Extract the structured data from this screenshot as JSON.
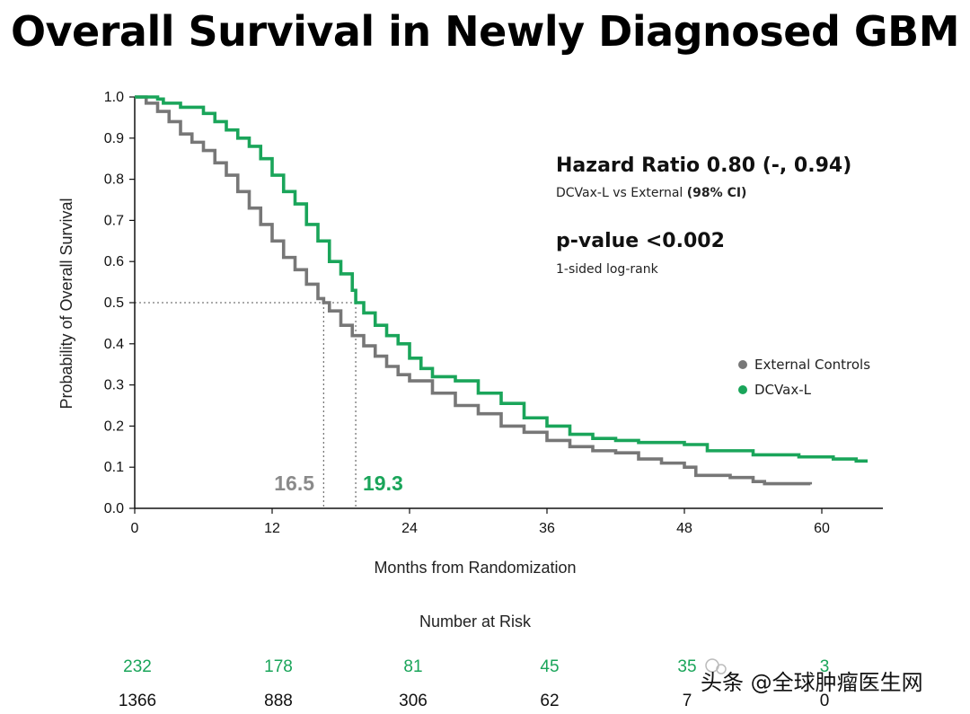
{
  "title": "Overall Survival in Newly Diagnosed GBM",
  "colors": {
    "external": "#777777",
    "dcvax": "#1aa55a",
    "axis": "#111111"
  },
  "annotation": {
    "hr_title": "Hazard Ratio 0.80 (-, 0.94)",
    "hr_sub_prefix": "DCVax-L vs External ",
    "hr_sub_ci": "(98% CI)",
    "p_title": "p-value <0.002",
    "p_sub": "1-sided log-rank"
  },
  "watermark": "头条 @全球肿瘤医生网",
  "chart_data": {
    "type": "line",
    "title": "Overall Survival in Newly Diagnosed GBM",
    "xlabel": "Months from Randomization",
    "ylabel": "Probability of Overall Survival",
    "xlim": [
      0,
      65
    ],
    "ylim": [
      0,
      1.0
    ],
    "xticks": [
      0,
      12,
      24,
      36,
      48,
      60
    ],
    "yticks": [
      "0.0",
      "0.1",
      "0.2",
      "0.3",
      "0.4",
      "0.5",
      "0.6",
      "0.7",
      "0.8",
      "0.9",
      "1.0"
    ],
    "reference_line": {
      "y": 0.5
    },
    "medians": [
      {
        "series": "External Controls",
        "x": 16.5,
        "label": "16.5"
      },
      {
        "series": "DCVax-L",
        "x": 19.3,
        "label": "19.3"
      }
    ],
    "legend": [
      "External Controls",
      "DCVax-L"
    ],
    "series": [
      {
        "name": "External Controls",
        "color": "#777777",
        "points": [
          [
            0,
            1.0
          ],
          [
            1,
            0.985
          ],
          [
            2,
            0.965
          ],
          [
            3,
            0.94
          ],
          [
            4,
            0.91
          ],
          [
            5,
            0.89
          ],
          [
            6,
            0.87
          ],
          [
            7,
            0.84
          ],
          [
            8,
            0.81
          ],
          [
            9,
            0.77
          ],
          [
            10,
            0.73
          ],
          [
            11,
            0.69
          ],
          [
            12,
            0.65
          ],
          [
            13,
            0.61
          ],
          [
            14,
            0.58
          ],
          [
            15,
            0.545
          ],
          [
            16,
            0.51
          ],
          [
            16.5,
            0.5
          ],
          [
            17,
            0.48
          ],
          [
            18,
            0.445
          ],
          [
            19,
            0.42
          ],
          [
            20,
            0.395
          ],
          [
            21,
            0.37
          ],
          [
            22,
            0.345
          ],
          [
            23,
            0.325
          ],
          [
            24,
            0.31
          ],
          [
            26,
            0.28
          ],
          [
            28,
            0.25
          ],
          [
            30,
            0.23
          ],
          [
            32,
            0.2
          ],
          [
            34,
            0.185
          ],
          [
            36,
            0.165
          ],
          [
            38,
            0.15
          ],
          [
            40,
            0.14
          ],
          [
            42,
            0.135
          ],
          [
            44,
            0.12
          ],
          [
            46,
            0.11
          ],
          [
            48,
            0.1
          ],
          [
            49,
            0.08
          ],
          [
            52,
            0.075
          ],
          [
            54,
            0.065
          ],
          [
            55,
            0.06
          ],
          [
            59,
            0.058
          ]
        ]
      },
      {
        "name": "DCVax-L",
        "color": "#1aa55a",
        "points": [
          [
            0,
            1.0
          ],
          [
            2,
            0.995
          ],
          [
            2.5,
            0.985
          ],
          [
            4,
            0.975
          ],
          [
            6,
            0.96
          ],
          [
            7,
            0.94
          ],
          [
            8,
            0.92
          ],
          [
            9,
            0.9
          ],
          [
            10,
            0.88
          ],
          [
            11,
            0.85
          ],
          [
            12,
            0.81
          ],
          [
            13,
            0.77
          ],
          [
            14,
            0.74
          ],
          [
            15,
            0.69
          ],
          [
            16,
            0.65
          ],
          [
            17,
            0.6
          ],
          [
            18,
            0.57
          ],
          [
            19,
            0.53
          ],
          [
            19.3,
            0.5
          ],
          [
            20,
            0.475
          ],
          [
            21,
            0.445
          ],
          [
            22,
            0.42
          ],
          [
            23,
            0.4
          ],
          [
            24,
            0.365
          ],
          [
            25,
            0.34
          ],
          [
            26,
            0.32
          ],
          [
            28,
            0.31
          ],
          [
            30,
            0.28
          ],
          [
            32,
            0.255
          ],
          [
            34,
            0.22
          ],
          [
            36,
            0.2
          ],
          [
            38,
            0.18
          ],
          [
            40,
            0.17
          ],
          [
            42,
            0.165
          ],
          [
            44,
            0.16
          ],
          [
            46,
            0.16
          ],
          [
            48,
            0.155
          ],
          [
            50,
            0.14
          ],
          [
            54,
            0.13
          ],
          [
            56,
            0.13
          ],
          [
            58,
            0.125
          ],
          [
            61,
            0.12
          ],
          [
            63,
            0.115
          ],
          [
            64,
            0.115
          ]
        ]
      }
    ],
    "number_at_risk": {
      "title": "Number at Risk",
      "dcvax": [
        "232",
        "178",
        "81",
        "45",
        "35",
        "3"
      ],
      "external": [
        "1366",
        "888",
        "306",
        "62",
        "7",
        "0"
      ]
    }
  }
}
